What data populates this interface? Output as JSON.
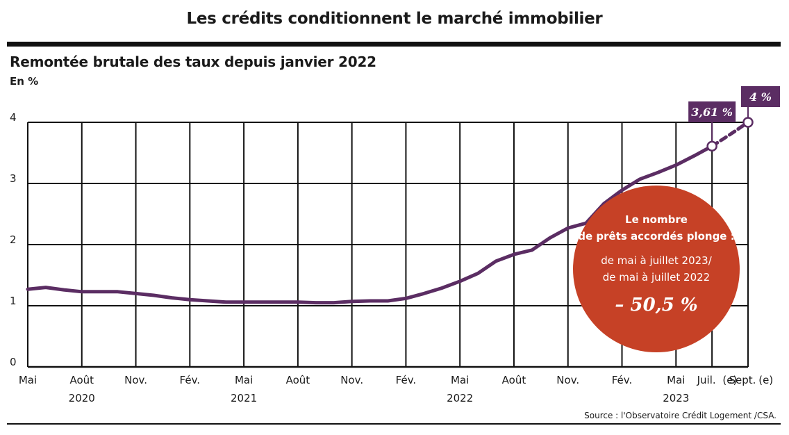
{
  "header": {
    "headline": "Les crédits conditionnent le marché immobilier",
    "source": "Source : l'Observatoire Crédit Logement /CSA."
  },
  "colors": {
    "line": "#5b2d63",
    "bubble": "#c64126",
    "grid": "#111111"
  },
  "chart_data": {
    "type": "line",
    "title": "Remontée brutale des taux depuis janvier 2022",
    "ylabel": "En %",
    "ylim": [
      0,
      4
    ],
    "yticks": [
      0,
      1,
      2,
      3,
      4
    ],
    "x_month_labels": [
      "Mai",
      "Août",
      "Nov.",
      "Fév.",
      "Mai",
      "Août",
      "Nov.",
      "Fév.",
      "Mai",
      "Août",
      "Nov.",
      "Fév.",
      "Mai",
      "Juil.",
      "Sept."
    ],
    "x_estimate_marks": [
      "(e)",
      "(e)"
    ],
    "x_year_labels": [
      {
        "label": "2020",
        "at": "2020-08"
      },
      {
        "label": "2021",
        "at": "2021-05"
      },
      {
        "label": "2022",
        "at": "2022-05"
      },
      {
        "label": "2023",
        "at": "2023-05"
      }
    ],
    "series": [
      {
        "values": [
          {
            "x": "2020-05",
            "y": 1.27
          },
          {
            "x": "2020-06",
            "y": 1.3
          },
          {
            "x": "2020-07",
            "y": 1.26
          },
          {
            "x": "2020-08",
            "y": 1.23
          },
          {
            "x": "2020-09",
            "y": 1.23
          },
          {
            "x": "2020-10",
            "y": 1.23
          },
          {
            "x": "2020-11",
            "y": 1.2
          },
          {
            "x": "2020-12",
            "y": 1.17
          },
          {
            "x": "2021-01",
            "y": 1.13
          },
          {
            "x": "2021-02",
            "y": 1.1
          },
          {
            "x": "2021-03",
            "y": 1.08
          },
          {
            "x": "2021-04",
            "y": 1.06
          },
          {
            "x": "2021-05",
            "y": 1.06
          },
          {
            "x": "2021-06",
            "y": 1.06
          },
          {
            "x": "2021-07",
            "y": 1.06
          },
          {
            "x": "2021-08",
            "y": 1.06
          },
          {
            "x": "2021-09",
            "y": 1.05
          },
          {
            "x": "2021-10",
            "y": 1.05
          },
          {
            "x": "2021-11",
            "y": 1.07
          },
          {
            "x": "2021-12",
            "y": 1.08
          },
          {
            "x": "2022-01",
            "y": 1.08
          },
          {
            "x": "2022-02",
            "y": 1.12
          },
          {
            "x": "2022-03",
            "y": 1.2
          },
          {
            "x": "2022-04",
            "y": 1.29
          },
          {
            "x": "2022-05",
            "y": 1.4
          },
          {
            "x": "2022-06",
            "y": 1.53
          },
          {
            "x": "2022-07",
            "y": 1.73
          },
          {
            "x": "2022-08",
            "y": 1.84
          },
          {
            "x": "2022-09",
            "y": 1.91
          },
          {
            "x": "2022-10",
            "y": 2.11
          },
          {
            "x": "2022-11",
            "y": 2.27
          },
          {
            "x": "2022-12",
            "y": 2.35
          },
          {
            "x": "2023-01",
            "y": 2.67
          },
          {
            "x": "2023-02",
            "y": 2.89
          },
          {
            "x": "2023-03",
            "y": 3.07
          },
          {
            "x": "2023-04",
            "y": 3.18
          },
          {
            "x": "2023-05",
            "y": 3.3
          },
          {
            "x": "2023-06",
            "y": 3.45
          },
          {
            "x": "2023-07",
            "y": 3.61
          }
        ],
        "estimate": [
          {
            "x": "2023-07",
            "y": 3.61
          },
          {
            "x": "2023-08",
            "y": 3.8
          },
          {
            "x": "2023-09",
            "y": 4.0
          }
        ]
      }
    ],
    "annotations": [
      {
        "x": "2023-07",
        "y": 3.61,
        "label": "3,61 %"
      },
      {
        "x": "2023-09",
        "y": 4.0,
        "label": "4 %"
      }
    ],
    "callout": {
      "lines": [
        "Le nombre",
        "de prêts accordés plonge :",
        "de mai à juillet 2023/",
        "de mai à juillet 2022"
      ],
      "value": "– 50,5 %"
    }
  }
}
